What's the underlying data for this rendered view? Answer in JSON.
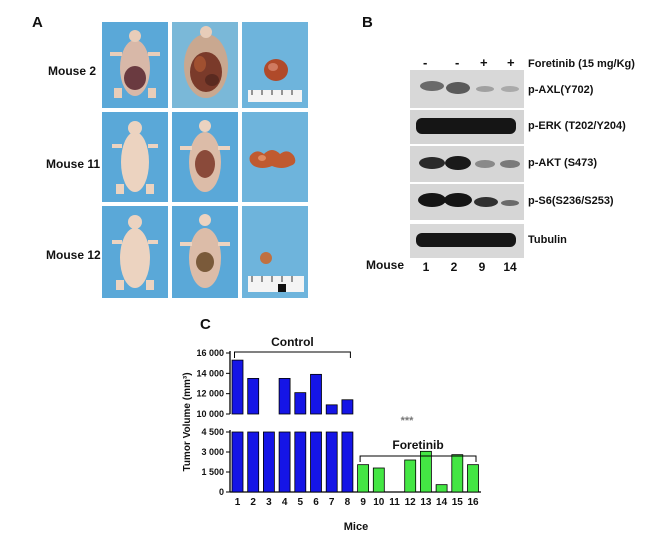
{
  "panels": {
    "a": "A",
    "b": "B",
    "c": "C"
  },
  "panel_a": {
    "rows": [
      {
        "label": "Mouse 2"
      },
      {
        "label": "Mouse 11"
      },
      {
        "label": "Mouse 12"
      }
    ],
    "colors": {
      "background": "#5aa8d8",
      "skin": "#e8cdb9",
      "tumor": "#b04a2a"
    }
  },
  "panel_b": {
    "treatment_label": "Foretinib (15 mg/Kg)",
    "signs": [
      "-",
      "-",
      "+",
      "+"
    ],
    "bands": [
      {
        "label": "p-AXL(Y702)"
      },
      {
        "label": "p-ERK (T202/Y204)"
      },
      {
        "label": "p-AKT (S473)"
      },
      {
        "label": "p-S6(S236/S253)"
      },
      {
        "label": "Tubulin"
      }
    ],
    "lane_row_label": "Mouse",
    "lanes": [
      "1",
      "2",
      "9",
      "14"
    ]
  },
  "chart_data": {
    "type": "bar",
    "ylabel": "Tumor Volume (mm³)",
    "xlabel": "Mice",
    "categories": [
      "1",
      "2",
      "3",
      "4",
      "5",
      "6",
      "7",
      "8",
      "9",
      "10",
      "11",
      "12",
      "13",
      "14",
      "15",
      "16"
    ],
    "values": [
      15300,
      13500,
      4650,
      13500,
      12100,
      13900,
      10900,
      11400,
      2050,
      1800,
      0,
      2400,
      3050,
      550,
      2800,
      2050
    ],
    "groups": [
      {
        "name": "Control",
        "start": 1,
        "end": 8,
        "color": "#1515e6"
      },
      {
        "name": "Foretinib",
        "start": 9,
        "end": 16,
        "color": "#44e644"
      }
    ],
    "significance": "***",
    "axis_break": [
      4500,
      10000
    ],
    "lower_ticks": [
      "0",
      "1 500",
      "3 000",
      "4 500"
    ],
    "upper_ticks": [
      "10 000",
      "12 000",
      "14 000",
      "16 000"
    ],
    "ylim": [
      0,
      16000
    ]
  }
}
